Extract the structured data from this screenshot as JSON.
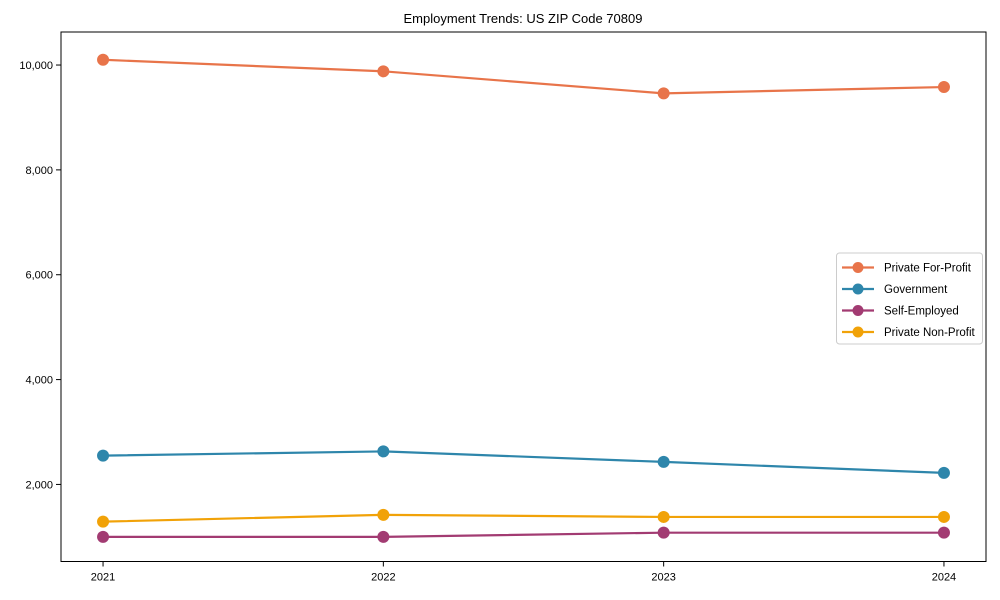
{
  "chart_data": {
    "type": "line",
    "title": "Employment Trends: US ZIP Code 70809",
    "x_categories": [
      "2021",
      "2022",
      "2023",
      "2024"
    ],
    "series": [
      {
        "name": "Private For-Profit",
        "color": "#e8744a",
        "values": [
          10100,
          9880,
          9460,
          9580
        ]
      },
      {
        "name": "Government",
        "color": "#2e86ab",
        "values": [
          2550,
          2630,
          2430,
          2220
        ]
      },
      {
        "name": "Self-Employed",
        "color": "#a23b72",
        "values": [
          1000,
          1000,
          1080,
          1080
        ]
      },
      {
        "name": "Private Non-Profit",
        "color": "#f1a208",
        "values": [
          1290,
          1420,
          1380,
          1380
        ]
      }
    ],
    "yticks": [
      {
        "value": 2000,
        "label": "2,000"
      },
      {
        "value": 4000,
        "label": "4,000"
      },
      {
        "value": 6000,
        "label": "6,000"
      },
      {
        "value": 8000,
        "label": "8,000"
      },
      {
        "value": 10000,
        "label": "10,000"
      }
    ],
    "ylim": [
      530,
      10630
    ],
    "xlabel": "",
    "ylabel": "",
    "grid": false,
    "legend_position": "center right",
    "marker": "circle",
    "axis_color": "#000000",
    "legend_border_color": "#cccccc",
    "legend_background": "#ffffff",
    "plot_background": "#ffffff"
  }
}
